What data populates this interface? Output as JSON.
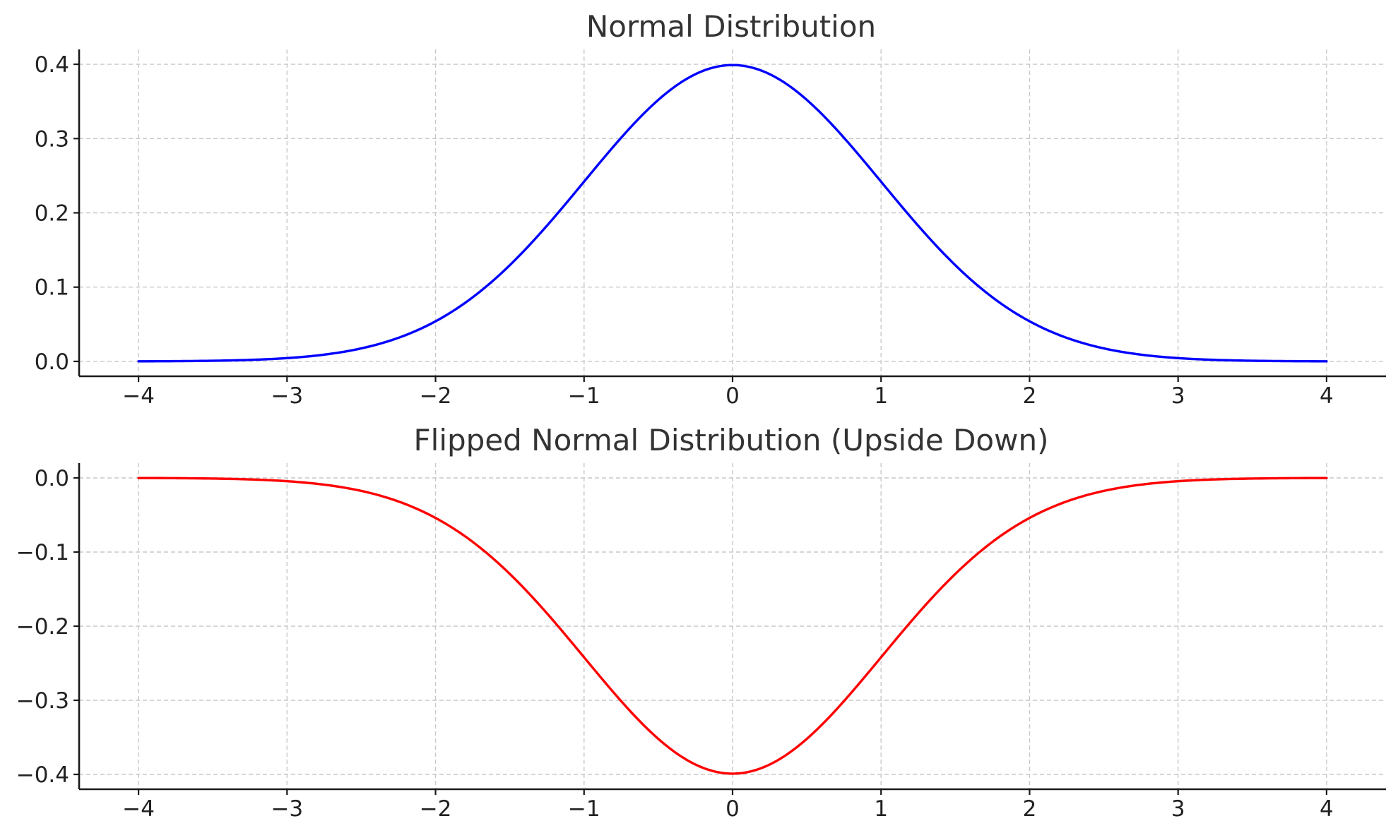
{
  "chart_data": [
    {
      "type": "line",
      "title": "Normal Distribution",
      "xlabel": "",
      "ylabel": "",
      "xlim": [
        -4.4,
        4.4
      ],
      "ylim": [
        -0.02,
        0.42
      ],
      "xticks": [
        -4,
        -3,
        -2,
        -1,
        0,
        1,
        2,
        3,
        4
      ],
      "xtick_labels": [
        "−4",
        "−3",
        "−2",
        "−1",
        "0",
        "1",
        "2",
        "3",
        "4"
      ],
      "yticks": [
        0.0,
        0.1,
        0.2,
        0.3,
        0.4
      ],
      "ytick_labels": [
        "0.0",
        "0.1",
        "0.2",
        "0.3",
        "0.4"
      ],
      "grid": true,
      "series": [
        {
          "color": "#0000ff",
          "x": [
            -4,
            -3.5,
            -3,
            -2.5,
            -2,
            -1.5,
            -1,
            -0.5,
            0,
            0.5,
            1,
            1.5,
            2,
            2.5,
            3,
            3.5,
            4
          ],
          "y": [
            0.0001,
            0.0009,
            0.0044,
            0.0175,
            0.054,
            0.1295,
            0.242,
            0.3521,
            0.3989,
            0.3521,
            0.242,
            0.1295,
            0.054,
            0.0175,
            0.0044,
            0.0009,
            0.0001
          ]
        }
      ]
    },
    {
      "type": "line",
      "title": "Flipped Normal Distribution (Upside Down)",
      "xlabel": "",
      "ylabel": "",
      "xlim": [
        -4.4,
        4.4
      ],
      "ylim": [
        -0.42,
        0.02
      ],
      "xticks": [
        -4,
        -3,
        -2,
        -1,
        0,
        1,
        2,
        3,
        4
      ],
      "xtick_labels": [
        "−4",
        "−3",
        "−2",
        "−1",
        "0",
        "1",
        "2",
        "3",
        "4"
      ],
      "yticks": [
        0.0,
        -0.1,
        -0.2,
        -0.3,
        -0.4
      ],
      "ytick_labels": [
        "0.0",
        "−0.1",
        "−0.2",
        "−0.3",
        "−0.4"
      ],
      "grid": true,
      "series": [
        {
          "color": "#ff0000",
          "x": [
            -4,
            -3.5,
            -3,
            -2.5,
            -2,
            -1.5,
            -1,
            -0.5,
            0,
            0.5,
            1,
            1.5,
            2,
            2.5,
            3,
            3.5,
            4
          ],
          "y": [
            -0.0001,
            -0.0009,
            -0.0044,
            -0.0175,
            -0.054,
            -0.1295,
            -0.242,
            -0.3521,
            -0.3989,
            -0.3521,
            -0.242,
            -0.1295,
            -0.054,
            -0.0175,
            -0.0044,
            -0.0009,
            -0.0001
          ]
        }
      ]
    }
  ]
}
